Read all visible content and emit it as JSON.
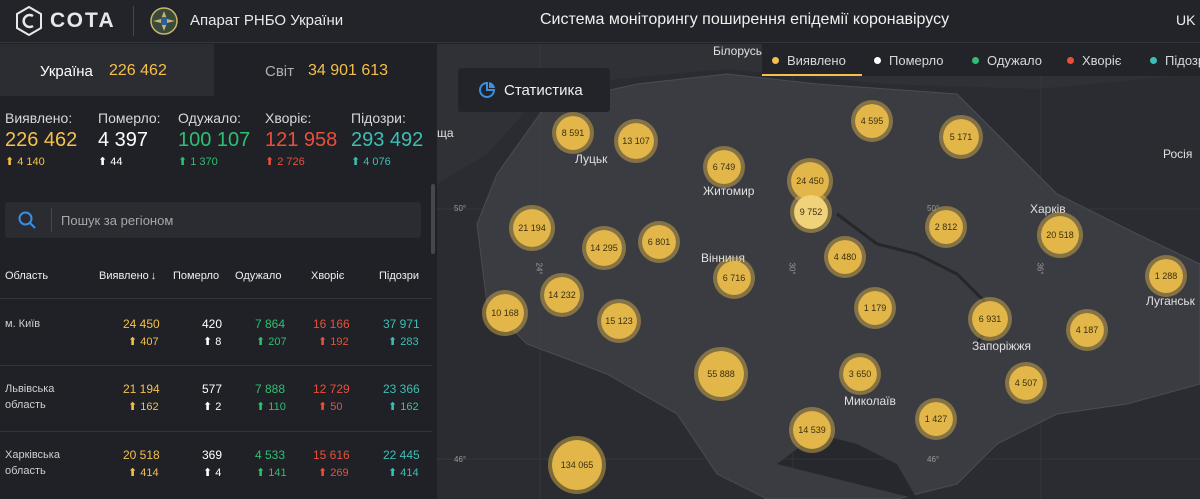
{
  "header": {
    "logo_text": "СОТА",
    "org_name": "Апарат РНБО України",
    "system_title": "Система моніторингу поширення епідемії коронавірусу",
    "lang": "UK"
  },
  "tabs": {
    "ukraine_label": "Україна",
    "ukraine_value": "226 462",
    "world_label": "Світ",
    "world_value": "34 901 613"
  },
  "stats": [
    {
      "label": "Виявлено:",
      "value": "226 462",
      "delta": "4 140",
      "color": "#f5c04a"
    },
    {
      "label": "Померло:",
      "value": "4 397",
      "delta": "44",
      "color": "#ffffff"
    },
    {
      "label": "Одужало:",
      "value": "100 107",
      "delta": "1 370",
      "color": "#2fbf71"
    },
    {
      "label": "Хворіє:",
      "value": "121 958",
      "delta": "2 726",
      "color": "#e8503a"
    },
    {
      "label": "Підозри:",
      "value": "293 492",
      "delta": "4 076",
      "color": "#3bbfb5"
    }
  ],
  "search": {
    "placeholder": "Пошук за регіоном"
  },
  "table": {
    "headers": [
      "Область",
      "Виявлено",
      "Померло",
      "Одужало",
      "Хворіє",
      "Підозри"
    ],
    "sort_arrow": "↓",
    "rows": [
      {
        "region": "м. Київ",
        "detected": "24 450",
        "detected_d": "407",
        "died": "420",
        "died_d": "8",
        "recovered": "7 864",
        "recovered_d": "207",
        "sick": "16 166",
        "sick_d": "192",
        "suspected": "37 971",
        "suspected_d": "283"
      },
      {
        "region": "Львівська область",
        "detected": "21 194",
        "detected_d": "162",
        "died": "577",
        "died_d": "2",
        "recovered": "7 888",
        "recovered_d": "110",
        "sick": "12 729",
        "sick_d": "50",
        "suspected": "23 366",
        "suspected_d": "162"
      },
      {
        "region": "Харківська область",
        "detected": "20 518",
        "detected_d": "414",
        "died": "369",
        "died_d": "4",
        "recovered": "4 533",
        "recovered_d": "141",
        "sick": "15 616",
        "sick_d": "269",
        "suspected": "22 445",
        "suspected_d": "414"
      }
    ]
  },
  "map": {
    "stat_button": "Статистика",
    "legend": [
      {
        "label": "Виявлено",
        "color": "#f5c04a"
      },
      {
        "label": "Померло",
        "color": "#ffffff"
      },
      {
        "label": "Одужало",
        "color": "#2fbf71"
      },
      {
        "label": "Хворіє",
        "color": "#e8503a"
      },
      {
        "label": "Підозри",
        "color": "#3bbfb5"
      }
    ],
    "cities": [
      "Білорусь",
      "Луцьк",
      "Житомир",
      "Вінниця",
      "Харків",
      "Росія",
      "Луганськ",
      "Запоріжжя",
      "Миколаїв",
      "ща"
    ],
    "coords": [
      "50°",
      "50°",
      "46°",
      "46°",
      "24°",
      "30°",
      "36°"
    ],
    "bubbles": [
      "8 591",
      "13 107",
      "6 749",
      "4 595",
      "5 171",
      "24 450",
      "9 752",
      "21 194",
      "14 295",
      "6 801",
      "2 812",
      "20 518",
      "4 480",
      "6 716",
      "14 232",
      "10 168",
      "15 123",
      "1 179",
      "6 931",
      "4 187",
      "1 288",
      "55 888",
      "3 650",
      "4 507",
      "14 539",
      "1 427",
      "134 065"
    ]
  }
}
